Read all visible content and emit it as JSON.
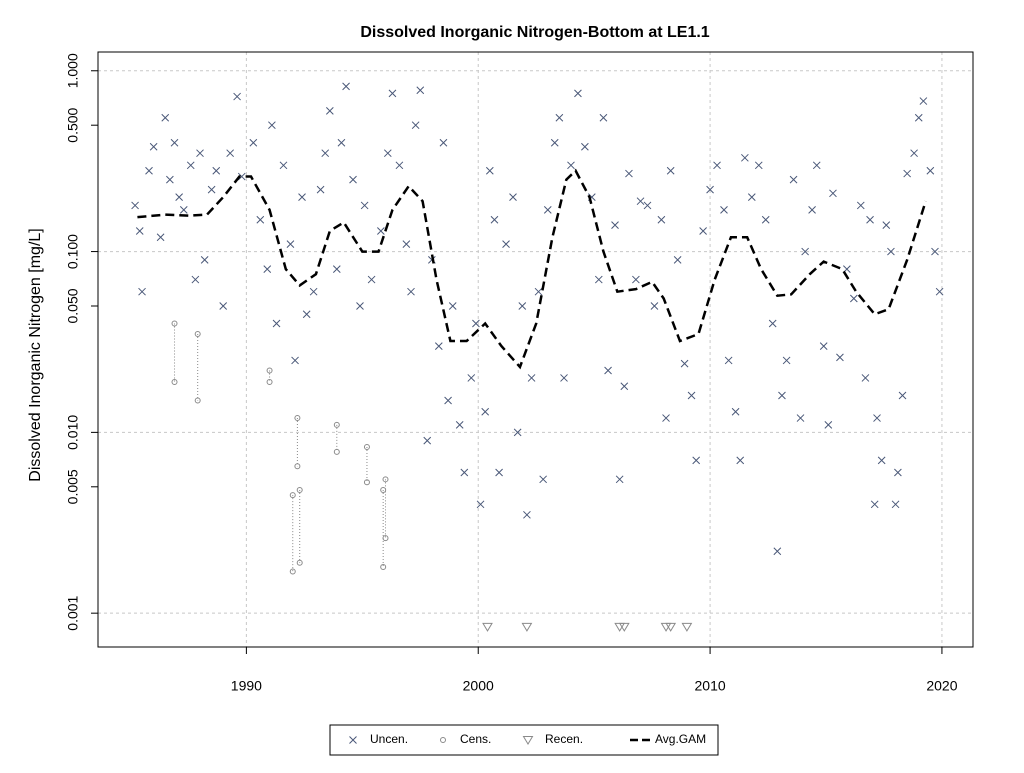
{
  "chart_data": {
    "type": "scatter",
    "title": "Dissolved Inorganic Nitrogen-Bottom at LE1.1",
    "y_label": "Dissolved Inorganic Nitrogen [mg/L]",
    "xlim": [
      1983.6,
      2021.34
    ],
    "ylim": [
      0.00065,
      1.27
    ],
    "log_y": true,
    "xticks": [
      1990,
      2000,
      2010,
      2020
    ],
    "yticks": [
      0.001,
      0.005,
      {
        "value": 0.01,
        "label": "0.010"
      },
      {
        "value": 0.05,
        "label": "0.050"
      },
      {
        "value": 0.1,
        "label": "0.100"
      },
      {
        "value": 0.5,
        "label": "0.500"
      },
      {
        "value": 1,
        "label": "1.000"
      }
    ],
    "xgrid": true,
    "ygrid": [
      0.001,
      0.01,
      0.1,
      1
    ],
    "legend": "bottom",
    "series": [
      {
        "name": "Uncen.",
        "color": "#4a5878",
        "marker": "x",
        "x": [
          1985.2,
          1985.4,
          1985.5,
          1985.8,
          1986.0,
          1986.3,
          1986.5,
          1986.7,
          1986.9,
          1987.1,
          1987.3,
          1987.6,
          1987.8,
          1988.0,
          1988.2,
          1988.5,
          1988.7,
          1989.0,
          1989.3,
          1989.6,
          1989.8,
          1990.3,
          1990.6,
          1990.9,
          1991.1,
          1991.3,
          1991.6,
          1991.9,
          1992.1,
          1992.4,
          1992.6,
          1992.9,
          1993.2,
          1993.4,
          1993.6,
          1993.9,
          1994.1,
          1994.3,
          1994.6,
          1994.9,
          1995.1,
          1995.4,
          1995.8,
          1996.1,
          1996.3,
          1996.6,
          1996.9,
          1997.1,
          1997.3,
          1997.5,
          1997.8,
          1998.0,
          1998.3,
          1998.5,
          1998.7,
          1998.9,
          1999.2,
          1999.4,
          1999.7,
          1999.9,
          2000.1,
          2000.3,
          2000.5,
          2000.7,
          2000.9,
          2001.2,
          2001.5,
          2001.7,
          2001.9,
          2002.1,
          2002.3,
          2002.6,
          2002.8,
          2003.0,
          2003.3,
          2003.5,
          2003.7,
          2004.0,
          2004.3,
          2004.6,
          2004.9,
          2005.2,
          2005.4,
          2005.6,
          2005.9,
          2006.1,
          2006.3,
          2006.5,
          2006.8,
          2007.0,
          2007.3,
          2007.6,
          2007.9,
          2008.1,
          2008.3,
          2008.6,
          2008.9,
          2009.2,
          2009.4,
          2009.7,
          2010.0,
          2010.3,
          2010.6,
          2010.8,
          2011.1,
          2011.3,
          2011.5,
          2011.8,
          2012.1,
          2012.4,
          2012.7,
          2012.9,
          2013.1,
          2013.3,
          2013.6,
          2013.9,
          2014.1,
          2014.4,
          2014.6,
          2014.9,
          2015.1,
          2015.3,
          2015.6,
          2015.9,
          2016.2,
          2016.5,
          2016.7,
          2016.9,
          2017.1,
          2017.2,
          2017.4,
          2017.6,
          2017.8,
          2018.0,
          2018.1,
          2018.3,
          2018.5,
          2018.8,
          2019.0,
          2019.2,
          2019.5,
          2019.7,
          2019.9
        ],
        "values": [
          0.18,
          0.13,
          0.06,
          0.28,
          0.38,
          0.12,
          0.55,
          0.25,
          0.4,
          0.2,
          0.17,
          0.3,
          0.07,
          0.35,
          0.09,
          0.22,
          0.28,
          0.05,
          0.35,
          0.72,
          0.26,
          0.4,
          0.15,
          0.08,
          0.5,
          0.04,
          0.3,
          0.11,
          0.025,
          0.2,
          0.045,
          0.06,
          0.22,
          0.35,
          0.6,
          0.08,
          0.4,
          0.82,
          0.25,
          0.05,
          0.18,
          0.07,
          0.13,
          0.35,
          0.75,
          0.3,
          0.11,
          0.06,
          0.5,
          0.78,
          0.009,
          0.09,
          0.03,
          0.4,
          0.015,
          0.05,
          0.011,
          0.006,
          0.02,
          0.04,
          0.004,
          0.013,
          0.28,
          0.15,
          0.006,
          0.11,
          0.2,
          0.01,
          0.05,
          0.0035,
          0.02,
          0.06,
          0.0055,
          0.17,
          0.4,
          0.55,
          0.02,
          0.3,
          0.75,
          0.38,
          0.2,
          0.07,
          0.55,
          0.022,
          0.14,
          0.0055,
          0.018,
          0.27,
          0.07,
          0.19,
          0.18,
          0.05,
          0.15,
          0.012,
          0.28,
          0.09,
          0.024,
          0.016,
          0.007,
          0.13,
          0.22,
          0.3,
          0.17,
          0.025,
          0.013,
          0.007,
          0.33,
          0.2,
          0.3,
          0.15,
          0.04,
          0.0022,
          0.016,
          0.025,
          0.25,
          0.012,
          0.1,
          0.17,
          0.3,
          0.03,
          0.011,
          0.21,
          0.026,
          0.08,
          0.055,
          0.18,
          0.02,
          0.15,
          0.004,
          0.012,
          0.007,
          0.14,
          0.1,
          0.004,
          0.006,
          0.016,
          0.27,
          0.35,
          0.55,
          0.68,
          0.28,
          0.1,
          0.06
        ]
      },
      {
        "name": "Cens.",
        "color": "#8a8a8a",
        "marker": "circle",
        "x": [
          1986.9,
          1987.9,
          1991.0,
          1992.0,
          1992.2,
          1992.3,
          1993.9,
          1995.2,
          1995.9,
          1996.0
        ],
        "lower": [
          0.019,
          0.015,
          0.019,
          0.0017,
          0.0065,
          0.0019,
          0.0078,
          0.0053,
          0.0018,
          0.0026
        ],
        "values": [
          0.04,
          0.035,
          0.022,
          0.0045,
          0.012,
          0.0048,
          0.011,
          0.0083,
          0.0048,
          0.0055
        ]
      },
      {
        "name": "Recen.",
        "color": "#8a8a8a",
        "marker": "triangle",
        "x": [
          2000.4,
          2002.1,
          2006.1,
          2006.3,
          2008.1,
          2008.3,
          2009.0
        ],
        "values": [
          0.00084,
          0.00084,
          0.00084,
          0.00084,
          0.00084,
          0.00084,
          0.00084
        ]
      },
      {
        "name": "Avg.GAM",
        "color": "#000000",
        "marker": "dashed-line",
        "x": [
          1985.3,
          1986.5,
          1987.5,
          1988.3,
          1989.0,
          1989.7,
          1990.2,
          1991.0,
          1991.7,
          1992.3,
          1993.0,
          1993.6,
          1994.2,
          1995.0,
          1995.7,
          1996.3,
          1997.0,
          1997.6,
          1998.2,
          1998.8,
          1999.5,
          2000.3,
          2001.0,
          2001.8,
          2002.5,
          2003.2,
          2003.8,
          2004.2,
          2004.8,
          2005.4,
          2006.0,
          2006.8,
          2007.5,
          2008.0,
          2008.7,
          2009.5,
          2010.2,
          2010.9,
          2011.6,
          2012.2,
          2012.9,
          2013.5,
          2014.3,
          2014.9,
          2015.7,
          2016.3,
          2017.1,
          2017.7,
          2018.5,
          2019.3
        ],
        "values": [
          0.155,
          0.16,
          0.158,
          0.16,
          0.2,
          0.26,
          0.26,
          0.17,
          0.08,
          0.065,
          0.075,
          0.13,
          0.145,
          0.1,
          0.1,
          0.17,
          0.23,
          0.19,
          0.07,
          0.032,
          0.032,
          0.04,
          0.03,
          0.023,
          0.04,
          0.12,
          0.25,
          0.28,
          0.2,
          0.1,
          0.06,
          0.062,
          0.068,
          0.055,
          0.032,
          0.035,
          0.07,
          0.12,
          0.12,
          0.08,
          0.057,
          0.058,
          0.075,
          0.088,
          0.08,
          0.06,
          0.045,
          0.048,
          0.09,
          0.19
        ]
      }
    ]
  }
}
